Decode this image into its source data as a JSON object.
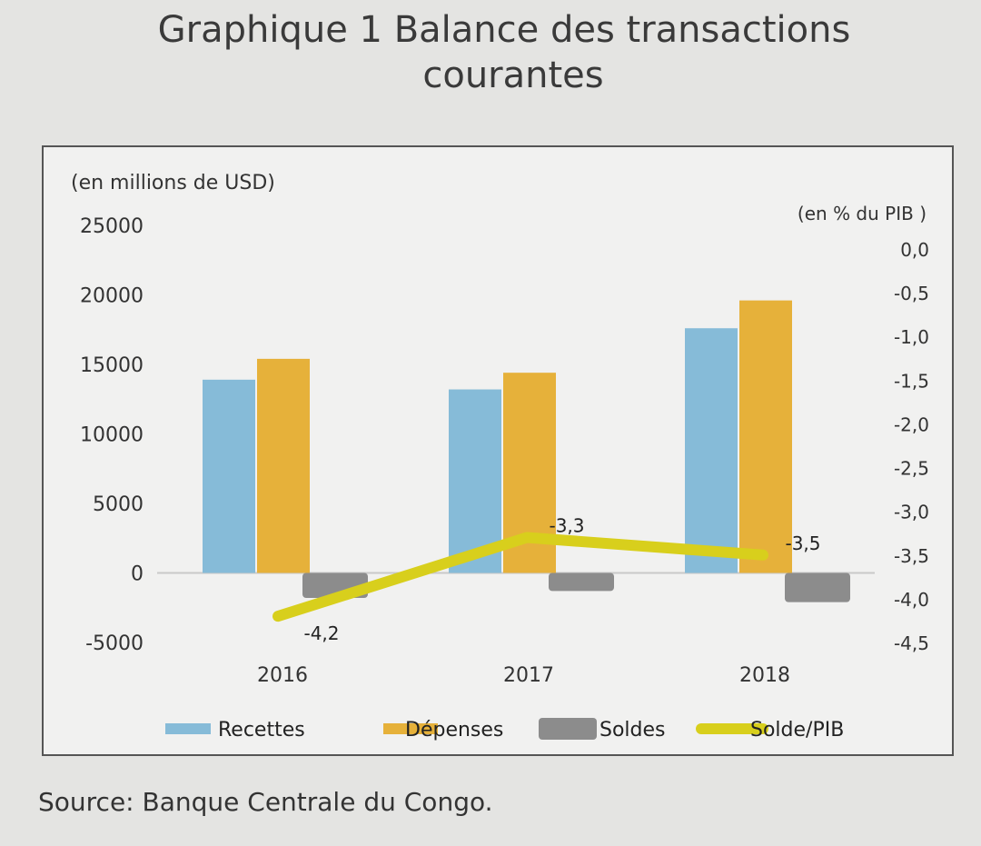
{
  "title": {
    "line1": "Graphique 1 Balance des transactions",
    "line2": "courantes"
  },
  "source": "Source: Banque Centrale du Congo.",
  "chart_data": {
    "type": "bar",
    "categories": [
      "2016",
      "2017",
      "2018"
    ],
    "ylabel_left": "(en millions de USD)",
    "ylabel_right": "(en % du PIB )",
    "ylim_left": [
      -5000,
      25000
    ],
    "ylim_right": [
      -4.5,
      0.0
    ],
    "yticks_left": [
      "25000",
      "20000",
      "15000",
      "10000",
      "5000",
      "0",
      "-5000"
    ],
    "yticks_right": [
      "0,0",
      "-0,5",
      "-1,0",
      "-1,5",
      "-2,0",
      "-2,5",
      "-3,0",
      "-3,5",
      "-4,0",
      "-4,5"
    ],
    "series": [
      {
        "name": "Recettes",
        "type": "bar",
        "axis": "left",
        "color": "#86bbd8",
        "values": [
          13900,
          13200,
          17600
        ]
      },
      {
        "name": "Dépenses",
        "type": "bar",
        "axis": "left",
        "color": "#e6b13a",
        "values": [
          15400,
          14400,
          19600
        ]
      },
      {
        "name": "Soldes",
        "type": "bar",
        "axis": "left",
        "color": "#8c8c8c",
        "values": [
          -1800,
          -1300,
          -2100
        ]
      },
      {
        "name": "Solde/PIB",
        "type": "line",
        "axis": "right",
        "color": "#d8cf1c",
        "values": [
          -4.2,
          -3.3,
          -3.5
        ],
        "labels": [
          "-4,2",
          "-3,3",
          "-3,5"
        ]
      }
    ],
    "legend_position": "bottom",
    "grid": false
  }
}
